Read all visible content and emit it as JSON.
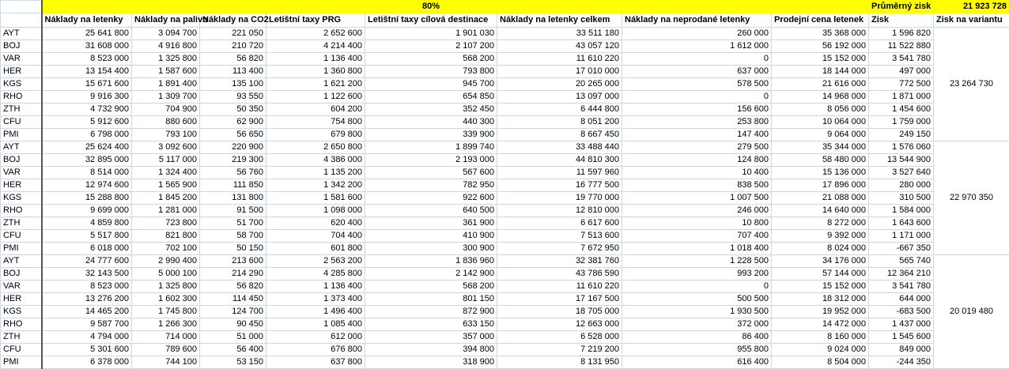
{
  "top_row": {
    "percent": "80%",
    "avg_label": "Průměrný zisk",
    "avg_value": "21 923 728"
  },
  "headers": [
    "Náklady na letenky",
    "Náklady na palivo",
    "Náklady na CO2",
    "Letištní taxy PRG",
    "Letištní taxy cílová destinace",
    "Náklady na letenky celkem",
    "Náklady na neprodané letenky",
    "Prodejní cena letenek",
    "Zisk",
    "Zisk na variantu"
  ],
  "colors": {
    "highlight": "#ffff00",
    "gridline": "#d0d7e5"
  },
  "blocks": [
    {
      "variant_profit": "23 264 730",
      "rows": [
        {
          "code": "AYT",
          "values": [
            "25 641 800",
            "3 094 700",
            "221 050",
            "2 652 600",
            "1 901 030",
            "33 511 180",
            "260 000",
            "35 368 000",
            "1 596 820"
          ]
        },
        {
          "code": "BOJ",
          "values": [
            "31 608 000",
            "4 916 800",
            "210 720",
            "4 214 400",
            "2 107 200",
            "43 057 120",
            "1 612 000",
            "56 192 000",
            "11 522 880"
          ]
        },
        {
          "code": "VAR",
          "values": [
            "8 523 000",
            "1 325 800",
            "56 820",
            "1 136 400",
            "568 200",
            "11 610 220",
            "0",
            "15 152 000",
            "3 541 780"
          ]
        },
        {
          "code": "HER",
          "values": [
            "13 154 400",
            "1 587 600",
            "113 400",
            "1 360 800",
            "793 800",
            "17 010 000",
            "637 000",
            "18 144 000",
            "497 000"
          ]
        },
        {
          "code": "KGS",
          "values": [
            "15 671 600",
            "1 891 400",
            "135 100",
            "1 621 200",
            "945 700",
            "20 265 000",
            "578 500",
            "21 616 000",
            "772 500"
          ]
        },
        {
          "code": "RHO",
          "values": [
            "9 916 300",
            "1 309 700",
            "93 550",
            "1 122 600",
            "654 850",
            "13 097 000",
            "0",
            "14 968 000",
            "1 871 000"
          ]
        },
        {
          "code": "ZTH",
          "values": [
            "4 732 900",
            "704 900",
            "50 350",
            "604 200",
            "352 450",
            "6 444 800",
            "156 600",
            "8 056 000",
            "1 454 600"
          ]
        },
        {
          "code": "CFU",
          "values": [
            "5 912 600",
            "880 600",
            "62 900",
            "754 800",
            "440 300",
            "8 051 200",
            "253 800",
            "10 064 000",
            "1 759 000"
          ]
        },
        {
          "code": "PMI",
          "values": [
            "6 798 000",
            "793 100",
            "56 650",
            "679 800",
            "339 900",
            "8 667 450",
            "147 400",
            "9 064 000",
            "249 150"
          ]
        }
      ]
    },
    {
      "variant_profit": "22 970 350",
      "rows": [
        {
          "code": "AYT",
          "values": [
            "25 624 400",
            "3 092 600",
            "220 900",
            "2 650 800",
            "1 899 740",
            "33 488 440",
            "279 500",
            "35 344 000",
            "1 576 060"
          ]
        },
        {
          "code": "BOJ",
          "values": [
            "32 895 000",
            "5 117 000",
            "219 300",
            "4 386 000",
            "2 193 000",
            "44 810 300",
            "124 800",
            "58 480 000",
            "13 544 900"
          ]
        },
        {
          "code": "VAR",
          "values": [
            "8 514 000",
            "1 324 400",
            "56 760",
            "1 135 200",
            "567 600",
            "11 597 960",
            "10 400",
            "15 136 000",
            "3 527 640"
          ]
        },
        {
          "code": "HER",
          "values": [
            "12 974 600",
            "1 565 900",
            "111 850",
            "1 342 200",
            "782 950",
            "16 777 500",
            "838 500",
            "17 896 000",
            "280 000"
          ]
        },
        {
          "code": "KGS",
          "values": [
            "15 288 800",
            "1 845 200",
            "131 800",
            "1 581 600",
            "922 600",
            "19 770 000",
            "1 007 500",
            "21 088 000",
            "310 500"
          ]
        },
        {
          "code": "RHO",
          "values": [
            "9 699 000",
            "1 281 000",
            "91 500",
            "1 098 000",
            "640 500",
            "12 810 000",
            "246 000",
            "14 640 000",
            "1 584 000"
          ]
        },
        {
          "code": "ZTH",
          "values": [
            "4 859 800",
            "723 800",
            "51 700",
            "620 400",
            "361 900",
            "6 617 600",
            "10 800",
            "8 272 000",
            "1 643 600"
          ]
        },
        {
          "code": "CFU",
          "values": [
            "5 517 800",
            "821 800",
            "58 700",
            "704 400",
            "410 900",
            "7 513 600",
            "707 400",
            "9 392 000",
            "1 171 000"
          ]
        },
        {
          "code": "PMI",
          "values": [
            "6 018 000",
            "702 100",
            "50 150",
            "601 800",
            "300 900",
            "7 672 950",
            "1 018 400",
            "8 024 000",
            "-667 350"
          ]
        }
      ]
    },
    {
      "variant_profit": "20 019 480",
      "rows": [
        {
          "code": "AYT",
          "values": [
            "24 777 600",
            "2 990 400",
            "213 600",
            "2 563 200",
            "1 836 960",
            "32 381 760",
            "1 228 500",
            "34 176 000",
            "565 740"
          ]
        },
        {
          "code": "BOJ",
          "values": [
            "32 143 500",
            "5 000 100",
            "214 290",
            "4 285 800",
            "2 142 900",
            "43 786 590",
            "993 200",
            "57 144 000",
            "12 364 210"
          ]
        },
        {
          "code": "VAR",
          "values": [
            "8 523 000",
            "1 325 800",
            "56 820",
            "1 136 400",
            "568 200",
            "11 610 220",
            "0",
            "15 152 000",
            "3 541 780"
          ]
        },
        {
          "code": "HER",
          "values": [
            "13 276 200",
            "1 602 300",
            "114 450",
            "1 373 400",
            "801 150",
            "17 167 500",
            "500 500",
            "18 312 000",
            "644 000"
          ]
        },
        {
          "code": "KGS",
          "values": [
            "14 465 200",
            "1 745 800",
            "124 700",
            "1 496 400",
            "872 900",
            "18 705 000",
            "1 930 500",
            "19 952 000",
            "-683 500"
          ]
        },
        {
          "code": "RHO",
          "values": [
            "9 587 700",
            "1 266 300",
            "90 450",
            "1 085 400",
            "633 150",
            "12 663 000",
            "372 000",
            "14 472 000",
            "1 437 000"
          ]
        },
        {
          "code": "ZTH",
          "values": [
            "4 794 000",
            "714 000",
            "51 000",
            "612 000",
            "357 000",
            "6 528 000",
            "86 400",
            "8 160 000",
            "1 545 600"
          ]
        },
        {
          "code": "CFU",
          "values": [
            "5 301 600",
            "789 600",
            "56 400",
            "676 800",
            "394 800",
            "7 219 200",
            "955 800",
            "9 024 000",
            "849 000"
          ]
        },
        {
          "code": "PMI",
          "values": [
            "6 378 000",
            "744 100",
            "53 150",
            "637 800",
            "318 900",
            "8 131 950",
            "616 400",
            "8 504 000",
            "-244 350"
          ]
        }
      ]
    }
  ]
}
